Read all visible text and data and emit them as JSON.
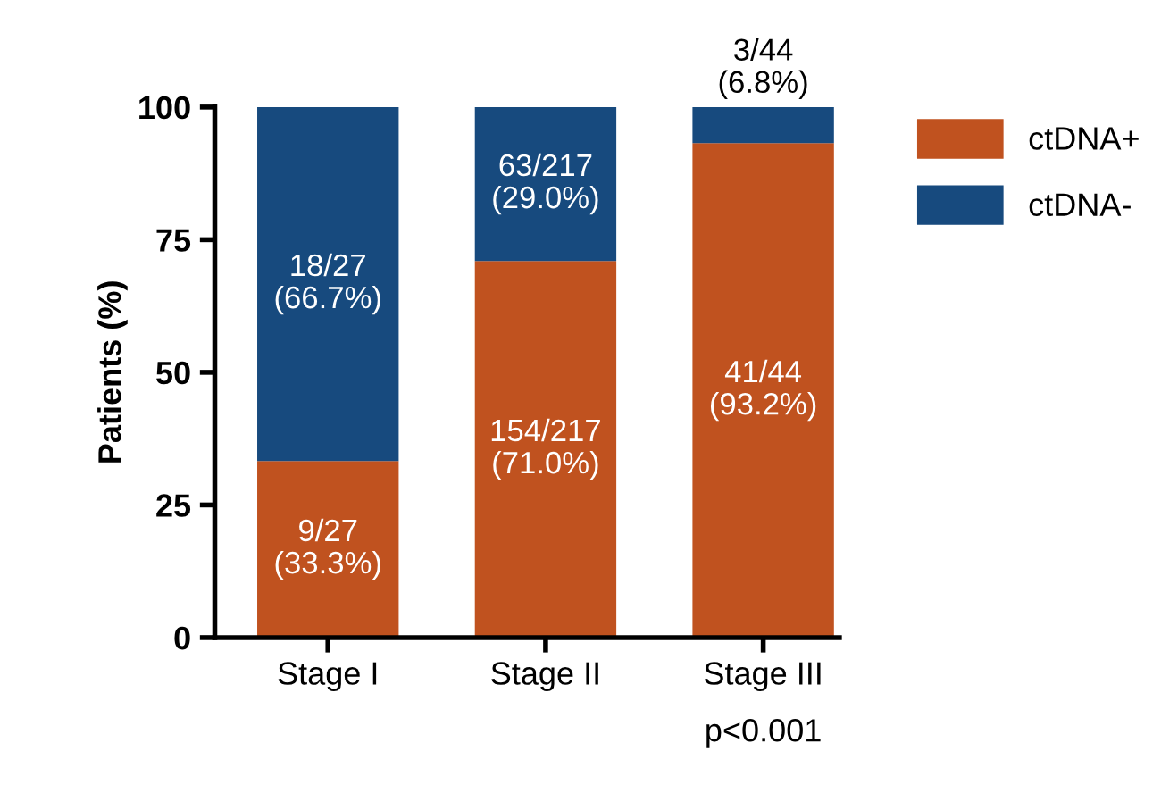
{
  "chart_data": {
    "type": "bar",
    "stacked": true,
    "ylabel": "Patients (%)",
    "categories": [
      "Stage I",
      "Stage II",
      "Stage III"
    ],
    "series": [
      {
        "name": "ctDNA+",
        "color": "#c0521f",
        "values": [
          33.3,
          71.0,
          93.2
        ],
        "value_labels": [
          "9/27\n(33.3%)",
          "154/217\n(71.0%)",
          "41/44\n(93.2%)"
        ]
      },
      {
        "name": "ctDNA-",
        "color": "#174a7e",
        "values": [
          66.7,
          29.0,
          6.8
        ],
        "value_labels": [
          "18/27\n(66.7%)",
          "63/217\n(29.0%)",
          "3/44\n(6.8%)"
        ]
      }
    ],
    "ylim": [
      0,
      100
    ],
    "yticks": [
      0,
      25,
      50,
      75,
      100
    ],
    "legend": "right",
    "annotations": [
      "p<0.001"
    ]
  }
}
